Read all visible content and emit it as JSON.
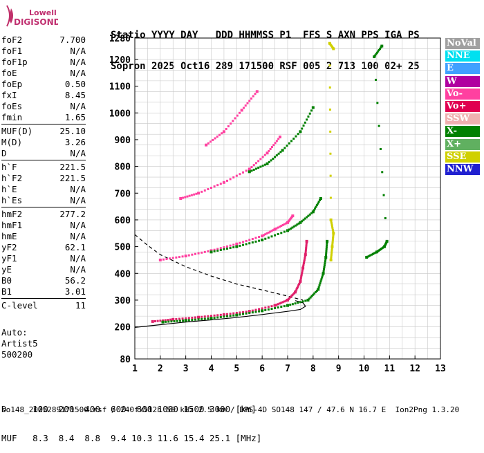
{
  "logo": {
    "line1": "Lowell",
    "line2": "DIGISONDE"
  },
  "header": {
    "line1": "Statio YYYY DAY   DDD HHMMSS P1  FFS S AXN PPS IGA PS",
    "line2": "Sopron 2025 Oct16 289 171500 RSF 005 2 713 100 02+ 25"
  },
  "params_group1": [
    {
      "label": "foF2",
      "value": "7.700"
    },
    {
      "label": "foF1",
      "value": "N/A"
    },
    {
      "label": "foF1p",
      "value": "N/A"
    },
    {
      "label": "foE",
      "value": "N/A"
    },
    {
      "label": "foEp",
      "value": "0.50"
    },
    {
      "label": "fxI",
      "value": "8.45"
    },
    {
      "label": "foEs",
      "value": "N/A"
    },
    {
      "label": "fmin",
      "value": "1.65"
    }
  ],
  "params_group2": [
    {
      "label": "MUF(D)",
      "value": "25.10"
    },
    {
      "label": "M(D)",
      "value": "3.26"
    },
    {
      "label": "D",
      "value": "N/A"
    }
  ],
  "params_group3": [
    {
      "label": "h`F",
      "value": "221.5"
    },
    {
      "label": "h`F2",
      "value": "221.5"
    },
    {
      "label": "h`E",
      "value": "N/A"
    },
    {
      "label": "h`Es",
      "value": "N/A"
    }
  ],
  "params_group4": [
    {
      "label": "hmF2",
      "value": "277.2"
    },
    {
      "label": "hmF1",
      "value": "N/A"
    },
    {
      "label": "hmE",
      "value": "N/A"
    },
    {
      "label": "yF2",
      "value": "62.1"
    },
    {
      "label": "yF1",
      "value": "N/A"
    },
    {
      "label": "yE",
      "value": "N/A"
    },
    {
      "label": "B0",
      "value": "56.2"
    },
    {
      "label": "B1",
      "value": "3.01"
    }
  ],
  "params_group5": [
    {
      "label": "C-level",
      "value": "11"
    }
  ],
  "auto": {
    "line1": "Auto:",
    "line2": "Artist5",
    "line3": "500200"
  },
  "legend": [
    {
      "label": "NoVal",
      "color": "#a0a0a0"
    },
    {
      "label": "NNE",
      "color": "#00e0f0"
    },
    {
      "label": "E",
      "color": "#40a0ff"
    },
    {
      "label": "W",
      "color": "#b000a0"
    },
    {
      "label": "Vo-",
      "color": "#ff40a0"
    },
    {
      "label": "Vo+",
      "color": "#e00050"
    },
    {
      "label": "SSW",
      "color": "#f0b0b0"
    },
    {
      "label": "X-",
      "color": "#008000"
    },
    {
      "label": "X+",
      "color": "#60b060"
    },
    {
      "label": "SSE",
      "color": "#d0d000"
    },
    {
      "label": "NNW",
      "color": "#2020d0"
    }
  ],
  "bottom": {
    "line1": "D     100  200  400  600  800 1000 1500 3000 [km]",
    "line2": "MUF   8.3  8.4  8.8  9.4 10.3 11.6 15.4 25.1 [MHz]"
  },
  "footer": "so148_2025289171500.rsf / 240fx512h 50 kHz 2.5 km / DPS-4D SO148 147 / 47.6 N 16.7 E  Ion2Png 1.3.20",
  "chart_data": {
    "type": "scatter",
    "x_ticks": [
      "1",
      "2",
      "3",
      "4",
      "5",
      "6",
      "7",
      "8",
      "9",
      "10",
      "11",
      "12",
      "13"
    ],
    "y_ticks": [
      "80",
      "200",
      "300",
      "400",
      "500",
      "600",
      "700",
      "800",
      "900",
      "1000",
      "1100",
      "1200",
      "1280"
    ],
    "xlim": [
      1,
      13
    ],
    "ylim": [
      80,
      1280
    ],
    "grid": true,
    "curves": [
      {
        "name": "profile-solid",
        "style": "solid",
        "color": "#000000",
        "x": [
          1.0,
          2.0,
          3.0,
          4.0,
          5.0,
          6.0,
          7.0,
          7.5,
          7.7,
          7.6,
          7.3
        ],
        "y": [
          198,
          208,
          218,
          226,
          235,
          246,
          258,
          265,
          277,
          290,
          298
        ]
      },
      {
        "name": "profile-dashed",
        "style": "dashed",
        "color": "#000000",
        "x": [
          1.0,
          1.5,
          2.0,
          3.0,
          4.0,
          5.0,
          6.0,
          7.0,
          7.6
        ],
        "y": [
          545,
          505,
          470,
          425,
          390,
          360,
          338,
          315,
          300
        ]
      }
    ],
    "series": [
      {
        "name": "o-trace-1",
        "color": "#e0206a",
        "x": [
          1.7,
          2.5,
          3.5,
          4.5,
          5.5,
          6.5,
          7.0,
          7.3,
          7.5,
          7.6,
          7.7,
          7.75
        ],
        "y": [
          220,
          228,
          236,
          246,
          258,
          280,
          300,
          330,
          370,
          420,
          470,
          520
        ]
      },
      {
        "name": "x-trace-1",
        "color": "#008000",
        "x": [
          2.1,
          3.0,
          4.0,
          5.0,
          6.0,
          7.0,
          7.8,
          8.2,
          8.4,
          8.5,
          8.55
        ],
        "y": [
          218,
          224,
          232,
          244,
          260,
          280,
          300,
          340,
          400,
          460,
          520
        ]
      },
      {
        "name": "o-trace-2",
        "color": "#ff40a0",
        "x": [
          2.0,
          3.0,
          4.0,
          5.0,
          6.0,
          6.5,
          7.0,
          7.2
        ],
        "y": [
          450,
          465,
          485,
          510,
          540,
          565,
          590,
          615
        ]
      },
      {
        "name": "x-trace-2",
        "color": "#008000",
        "x": [
          4.0,
          5.0,
          6.0,
          7.0,
          7.5,
          8.0,
          8.3
        ],
        "y": [
          480,
          500,
          525,
          560,
          590,
          630,
          680
        ]
      },
      {
        "name": "o-trace-3",
        "color": "#ff40a0",
        "x": [
          2.8,
          3.5,
          4.5,
          5.5,
          6.2,
          6.7
        ],
        "y": [
          680,
          700,
          740,
          790,
          850,
          910
        ]
      },
      {
        "name": "o-trace-4",
        "color": "#ff40a0",
        "x": [
          3.8,
          4.5,
          5.2,
          5.8
        ],
        "y": [
          880,
          930,
          1010,
          1080
        ]
      },
      {
        "name": "x-trace-4",
        "color": "#008000",
        "x": [
          5.5,
          6.2,
          6.8,
          7.5,
          8.0
        ],
        "y": [
          780,
          810,
          860,
          930,
          1020
        ]
      },
      {
        "name": "sse-spread",
        "color": "#d0d000",
        "x": [
          8.7,
          8.75,
          8.8,
          8.7,
          8.65,
          8.8
        ],
        "y": [
          450,
          500,
          550,
          600,
          1260,
          1240
        ]
      },
      {
        "name": "x-cluster-11",
        "color": "#008000",
        "x": [
          10.1,
          10.5,
          10.8,
          10.9,
          10.4,
          10.7
        ],
        "y": [
          460,
          480,
          500,
          520,
          1210,
          1250
        ]
      }
    ]
  }
}
